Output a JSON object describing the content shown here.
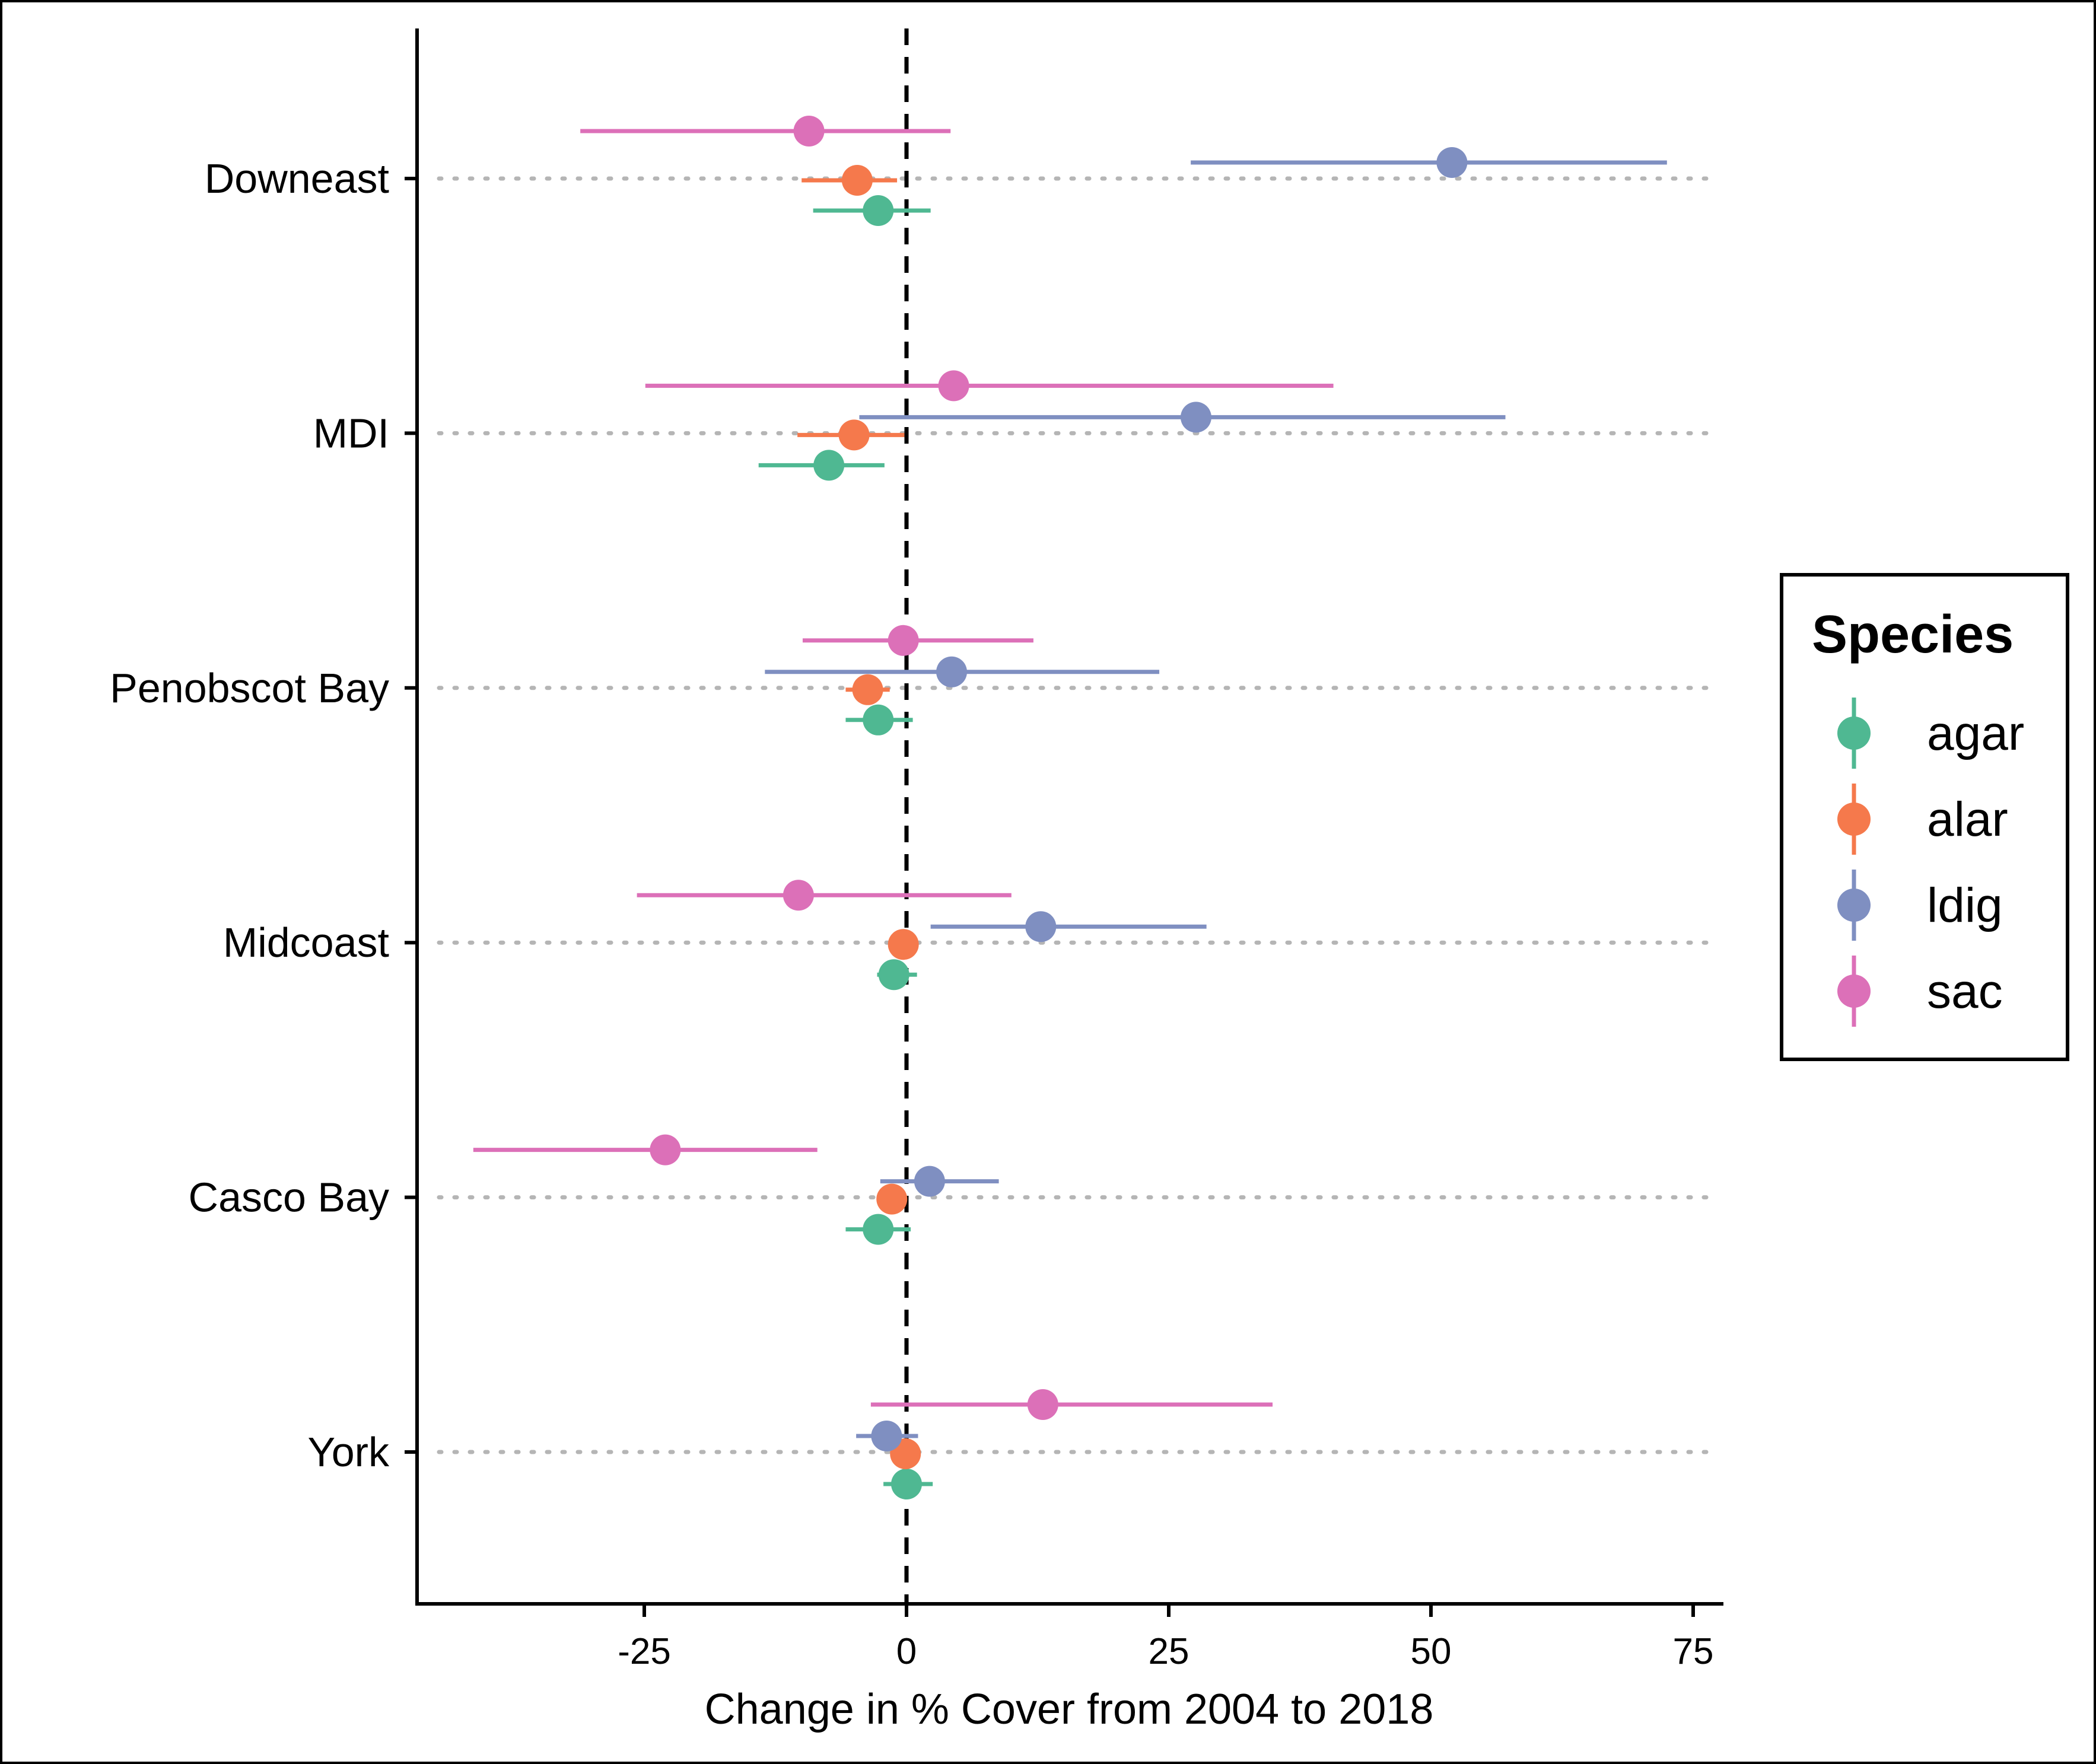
{
  "chart_data": {
    "type": "scatter",
    "subtype": "forest-plot (point estimate with confidence interval)",
    "title": "",
    "xlabel": "Change in % Cover from 2004 to 2018",
    "ylabel": "",
    "xlim": [
      -47,
      78
    ],
    "xticks": [
      -25,
      0,
      25,
      50,
      75
    ],
    "xtick_labels": [
      "-25",
      "0",
      "25",
      "50",
      "75"
    ],
    "reference_line": {
      "x": 0,
      "style": "dashed"
    },
    "categories": [
      "Downeast",
      "MDI",
      "Penobscot Bay",
      "Midcoast",
      "Casco Bay",
      "York"
    ],
    "legend": {
      "title": "Species",
      "position": "right"
    },
    "series": [
      {
        "name": "agar",
        "color": "#4fb892",
        "estimate": [
          -2.7,
          -7.4,
          -2.7,
          -1.2,
          -2.7,
          0.0
        ],
        "lower": [
          -8.9,
          -14.1,
          -5.8,
          -2.8,
          -5.8,
          -2.2
        ],
        "upper": [
          2.3,
          -2.1,
          0.6,
          1.0,
          0.4,
          2.5
        ]
      },
      {
        "name": "alar",
        "color": "#f5794c",
        "estimate": [
          -4.7,
          -5.0,
          -3.7,
          -0.3,
          -1.4,
          -0.1
        ],
        "lower": [
          -10.0,
          -10.4,
          -5.8,
          -1.4,
          -2.7,
          -1.0
        ],
        "upper": [
          -0.9,
          -0.2,
          -1.6,
          1.1,
          -0.1,
          1.0
        ]
      },
      {
        "name": "ldig",
        "color": "#7f8fc1",
        "estimate": [
          52.0,
          27.6,
          4.3,
          12.8,
          2.2,
          -1.9
        ],
        "lower": [
          27.1,
          -4.5,
          -13.5,
          2.3,
          -2.5,
          -4.8
        ],
        "upper": [
          72.5,
          57.1,
          24.1,
          28.6,
          8.8,
          1.1
        ]
      },
      {
        "name": "sac",
        "color": "#dc70b8",
        "estimate": [
          -9.3,
          4.5,
          -0.3,
          -10.3,
          -23.0,
          13.0
        ],
        "lower": [
          -31.1,
          -24.9,
          -9.9,
          -25.7,
          -41.3,
          -3.4
        ],
        "upper": [
          4.2,
          40.7,
          12.1,
          10.0,
          -8.5,
          34.9
        ]
      }
    ]
  }
}
